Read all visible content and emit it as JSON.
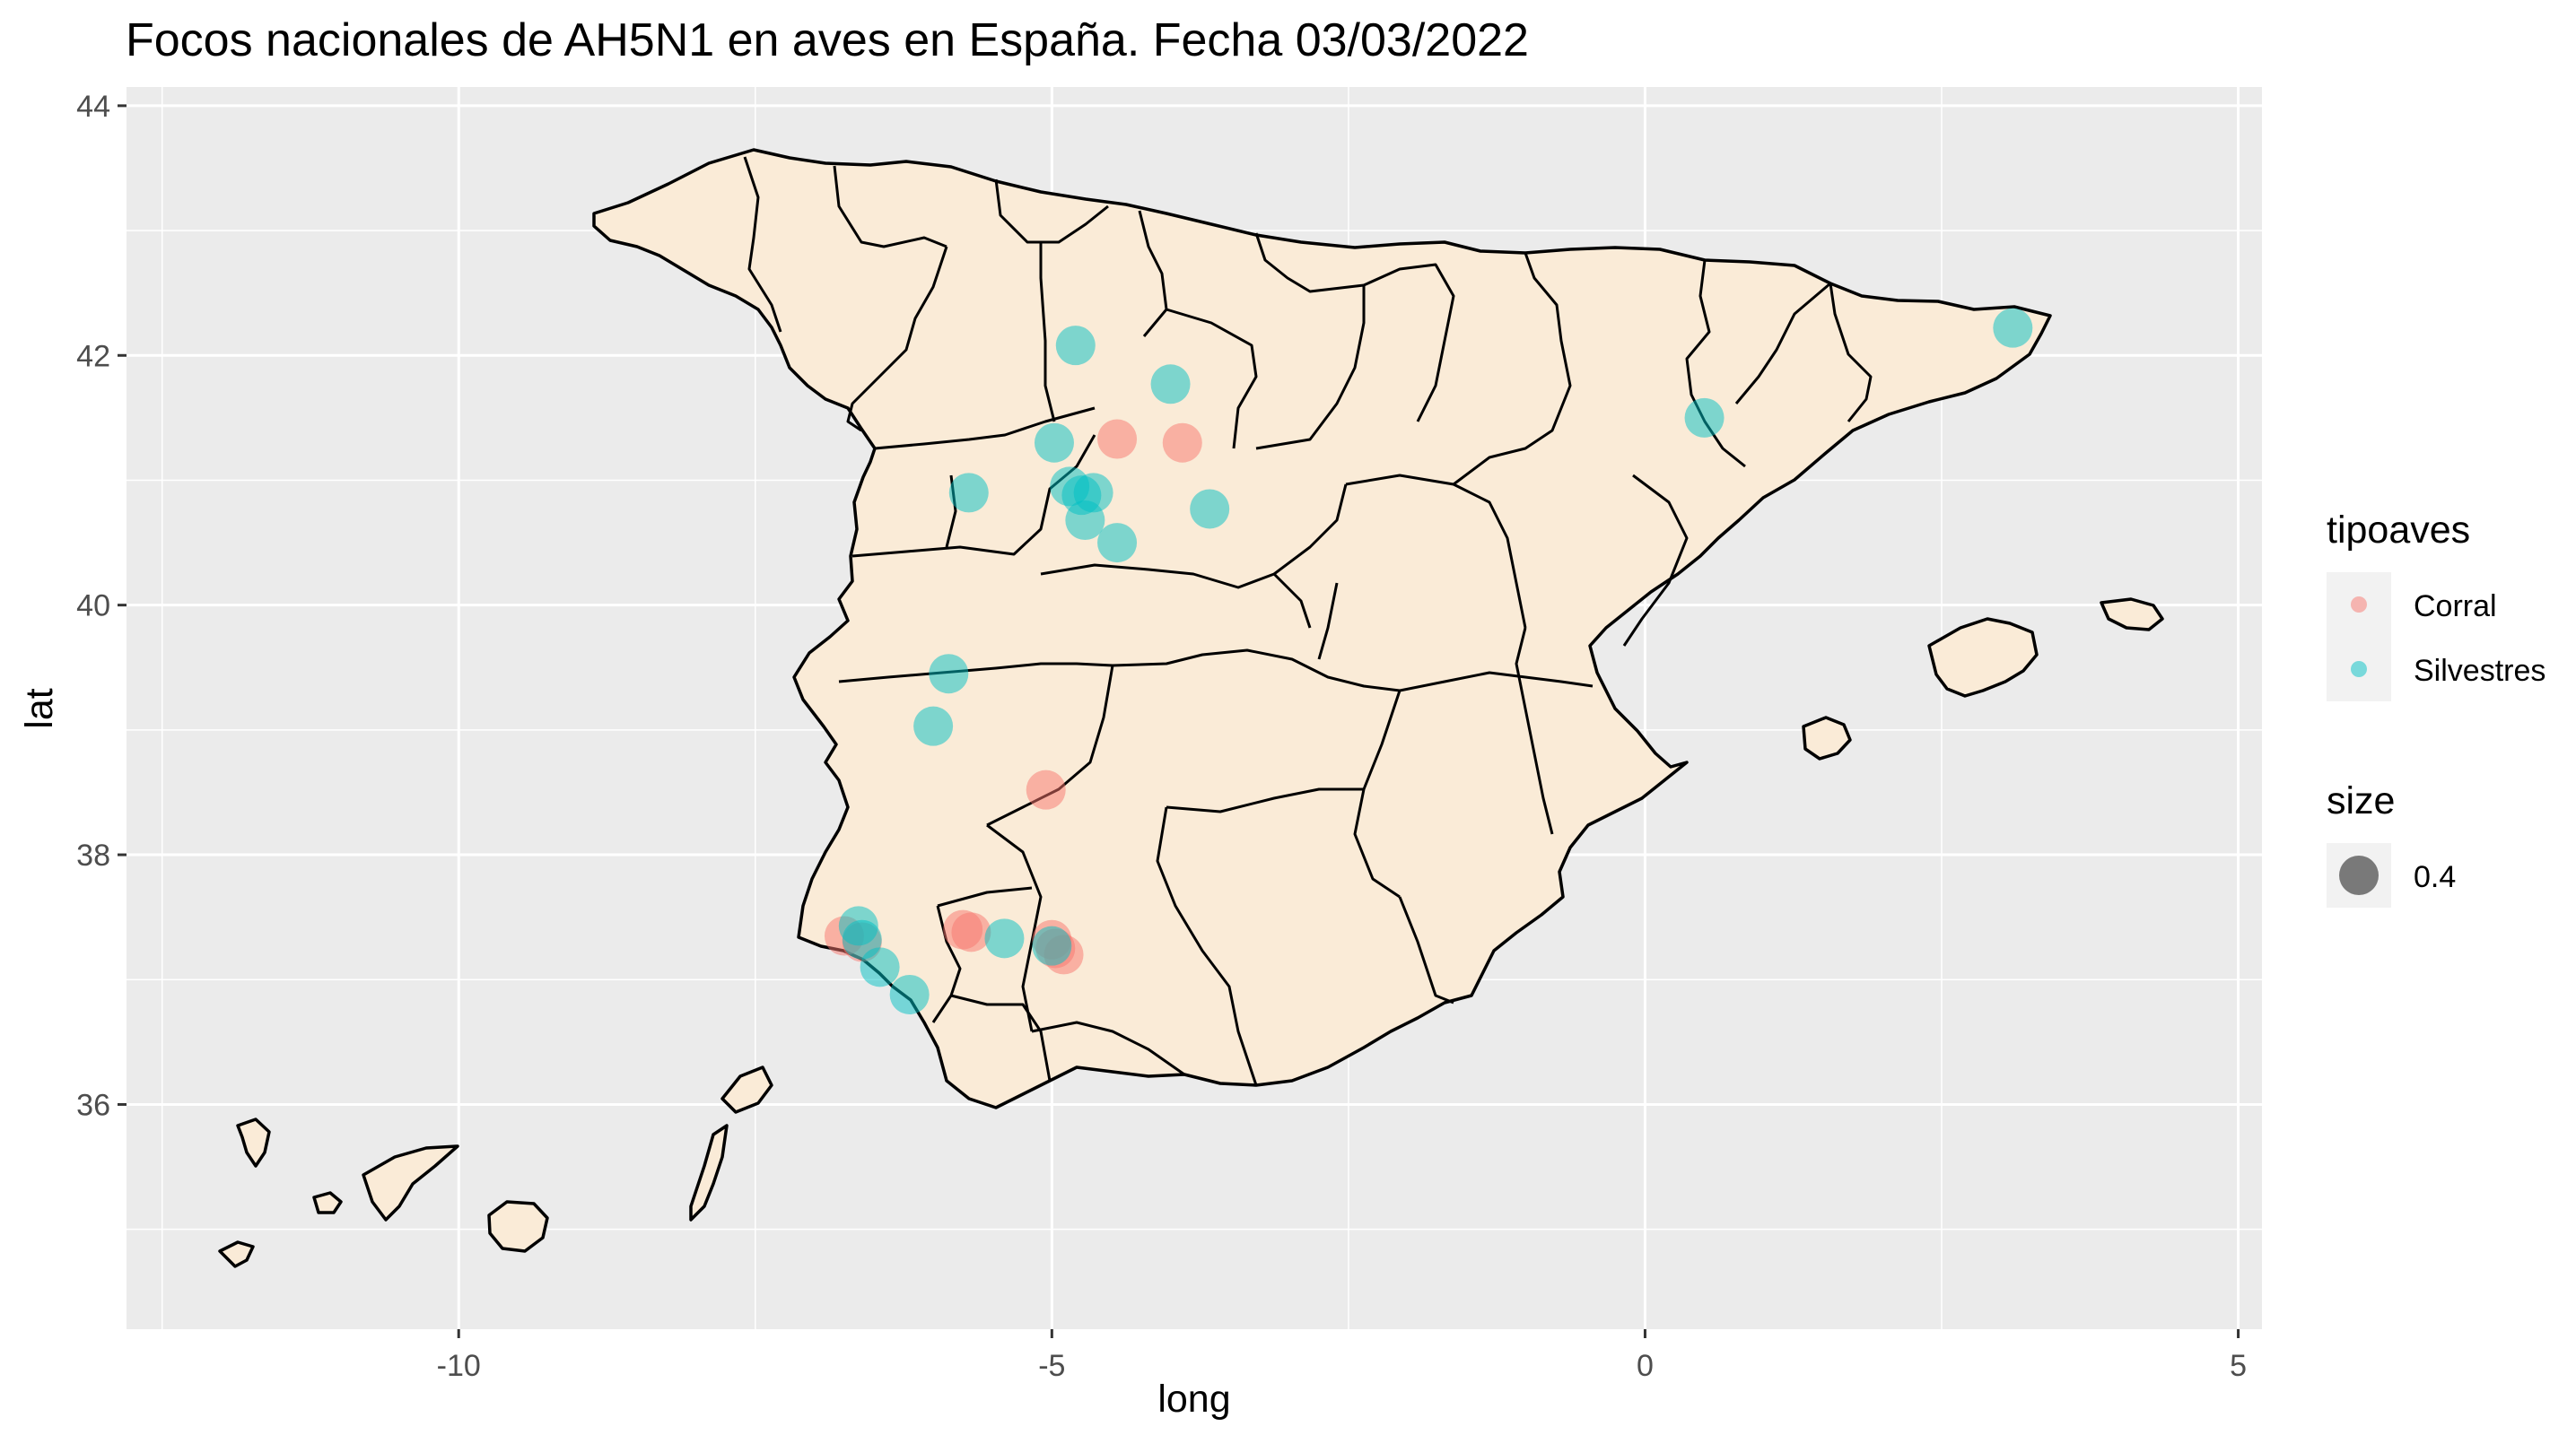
{
  "title": "Focos nacionales de AH5N1 en aves en España. Fecha 03/03/2022",
  "colors": {
    "panel_bg": "#EBEBEB",
    "grid": "#FFFFFF",
    "land_fill": "#FAEBD7",
    "border": "#000000",
    "corral": "#F8766D",
    "silvestres": "#00BFC4"
  },
  "chart_data": {
    "type": "scatter",
    "xlabel": "long",
    "ylabel": "lat",
    "xlim": [
      -12.8,
      5.2
    ],
    "ylim": [
      34.2,
      44.15
    ],
    "x_ticks": [
      {
        "value": -10,
        "label": "-10"
      },
      {
        "value": -5,
        "label": "-5"
      },
      {
        "value": 0,
        "label": "0"
      },
      {
        "value": 5,
        "label": "5"
      }
    ],
    "y_ticks": [
      {
        "value": 36,
        "label": "36"
      },
      {
        "value": 38,
        "label": "38"
      },
      {
        "value": 40,
        "label": "40"
      },
      {
        "value": 42,
        "label": "42"
      },
      {
        "value": 44,
        "label": "44"
      }
    ],
    "point_size": 0.4,
    "series": [
      {
        "name": "Corral",
        "points": [
          {
            "x": -4.45,
            "y": 41.33
          },
          {
            "x": -3.9,
            "y": 41.3
          },
          {
            "x": -5.05,
            "y": 38.52
          },
          {
            "x": -6.75,
            "y": 37.35
          },
          {
            "x": -6.6,
            "y": 37.3
          },
          {
            "x": -5.75,
            "y": 37.4
          },
          {
            "x": -5.68,
            "y": 37.38
          },
          {
            "x": -5.0,
            "y": 37.32
          },
          {
            "x": -4.9,
            "y": 37.2
          },
          {
            "x": -4.97,
            "y": 37.25
          }
        ]
      },
      {
        "name": "Silvestres",
        "points": [
          {
            "x": -4.8,
            "y": 42.08
          },
          {
            "x": -4.0,
            "y": 41.77
          },
          {
            "x": 0.5,
            "y": 41.5
          },
          {
            "x": 3.1,
            "y": 42.22
          },
          {
            "x": -4.98,
            "y": 41.3
          },
          {
            "x": -5.7,
            "y": 40.9
          },
          {
            "x": -4.85,
            "y": 40.95
          },
          {
            "x": -4.75,
            "y": 40.88
          },
          {
            "x": -4.65,
            "y": 40.9
          },
          {
            "x": -4.72,
            "y": 40.68
          },
          {
            "x": -4.45,
            "y": 40.5
          },
          {
            "x": -3.67,
            "y": 40.77
          },
          {
            "x": -5.87,
            "y": 39.45
          },
          {
            "x": -6.0,
            "y": 39.03
          },
          {
            "x": -6.63,
            "y": 37.43
          },
          {
            "x": -6.6,
            "y": 37.32
          },
          {
            "x": -5.4,
            "y": 37.33
          },
          {
            "x": -6.45,
            "y": 37.1
          },
          {
            "x": -6.2,
            "y": 36.88
          },
          {
            "x": -5.0,
            "y": 37.27
          }
        ]
      }
    ],
    "legend": {
      "position": "right",
      "color_title": "tipoaves",
      "size_title": "size",
      "size_label": "0.4",
      "items": [
        "Corral",
        "Silvestres"
      ]
    }
  }
}
